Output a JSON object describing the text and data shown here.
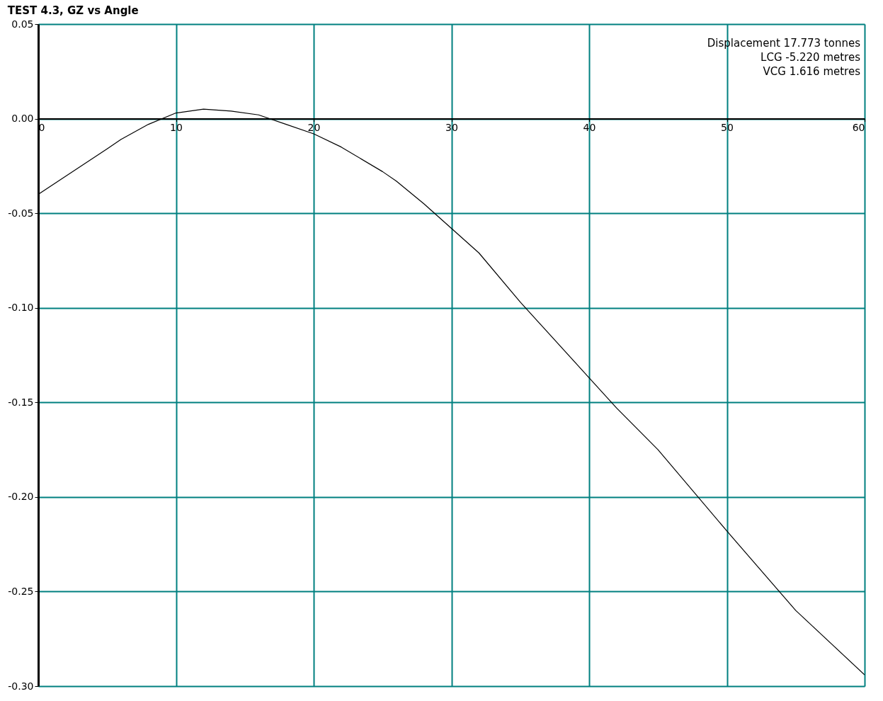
{
  "chart_data": {
    "type": "line",
    "title": "TEST 4.3,  GZ vs Angle",
    "x": [
      0,
      5,
      6,
      8,
      10,
      12,
      14,
      16,
      18,
      20,
      22,
      25,
      26,
      28,
      30,
      32,
      35,
      40,
      42,
      45,
      50,
      55,
      60
    ],
    "series": [
      {
        "color": "#000000",
        "values": [
          -0.04,
          -0.016,
          -0.011,
          -0.003,
          0.003,
          0.005,
          0.004,
          0.002,
          -0.003,
          -0.008,
          -0.015,
          -0.028,
          -0.033,
          -0.045,
          -0.058,
          -0.071,
          -0.097,
          -0.137,
          -0.153,
          -0.175,
          -0.218,
          -0.26,
          -0.294
        ]
      }
    ],
    "xlim": [
      0,
      60
    ],
    "xticks": [
      0,
      10,
      20,
      30,
      40,
      50,
      60
    ],
    "ylim": [
      -0.3,
      0.05
    ],
    "yticks": [
      {
        "value": -0.3,
        "label": "-0.30"
      },
      {
        "value": -0.25,
        "label": "-0.25"
      },
      {
        "value": -0.2,
        "label": "-0.20"
      },
      {
        "value": -0.15,
        "label": "-0.15"
      },
      {
        "value": -0.1,
        "label": "-0.10"
      },
      {
        "value": -0.05,
        "label": "-0.05"
      },
      {
        "value": 0.0,
        "label": "0.00"
      },
      {
        "value": 0.05,
        "label": "0.05"
      }
    ],
    "grid": true,
    "marker": "none",
    "line_style": "solid",
    "annotations": [
      "Displacement 17.773 tonnes",
      "LCG -5.220 metres",
      "VCG 1.616 metres"
    ]
  }
}
